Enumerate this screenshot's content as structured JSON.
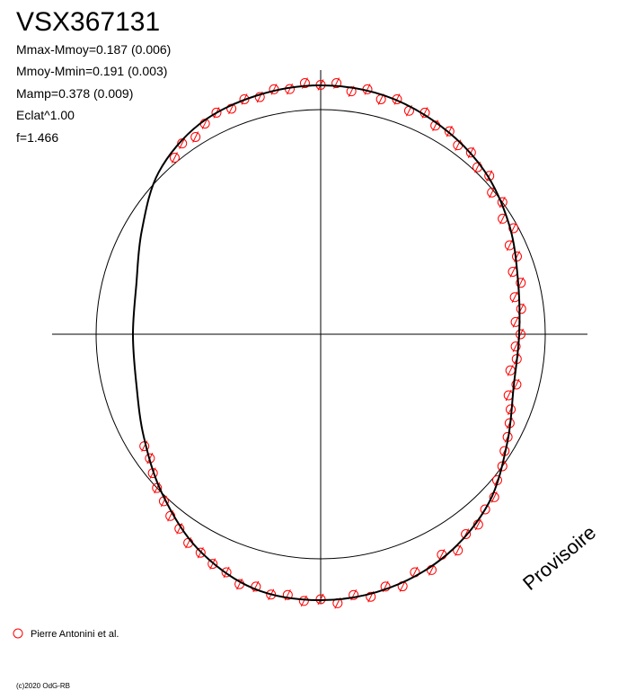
{
  "chart_data": {
    "type": "polar",
    "title": "VSX367131",
    "annotations": [
      "Mmax-Mmoy=0.187 (0.006)",
      "Mmoy-Mmin=0.191 (0.003)",
      "Mamp=0.378 (0.009)",
      "Eclat^1.00",
      "f=1.466"
    ],
    "watermark": "Provisoire",
    "credit": "(c)2020 OdG-RB",
    "reference_radius": 1,
    "series": [
      {
        "name": "Pierre Antonini et al.",
        "color": "#ff0000",
        "phase": [
          0.0,
          0.01,
          0.02,
          0.03,
          0.04,
          0.05,
          0.06,
          0.07,
          0.08,
          0.09,
          0.1,
          0.11,
          0.12,
          0.13,
          0.14,
          0.15,
          0.16,
          0.17,
          0.18,
          0.19,
          0.2,
          0.21,
          0.22,
          0.23,
          0.24,
          0.25,
          0.26,
          0.27,
          0.28,
          0.29,
          0.3,
          0.31,
          0.32,
          0.33,
          0.34,
          0.35,
          0.36,
          0.37,
          0.38,
          0.39,
          0.4,
          0.41,
          0.42,
          0.43,
          0.44,
          0.45,
          0.46,
          0.47,
          0.48,
          0.49,
          0.5,
          0.51,
          0.52,
          0.53,
          0.54,
          0.55,
          0.56,
          0.57,
          0.58,
          0.59,
          0.6,
          0.61,
          0.62,
          0.63,
          0.64,
          0.65,
          0.66,
          0.89,
          0.9,
          0.91,
          0.92,
          0.93,
          0.94,
          0.95,
          0.96,
          0.97,
          0.98,
          0.99
        ],
        "values": [
          1.11,
          1.12,
          1.09,
          1.11,
          1.08,
          1.1,
          1.07,
          1.09,
          1.06,
          1.07,
          1.04,
          1.05,
          1.02,
          1.03,
          0.99,
          1.0,
          0.96,
          0.98,
          0.93,
          0.94,
          0.9,
          0.92,
          0.88,
          0.9,
          0.87,
          0.89,
          0.87,
          0.88,
          0.86,
          0.9,
          0.88,
          0.91,
          0.93,
          0.95,
          0.97,
          1.0,
          1.02,
          1.06,
          1.07,
          1.1,
          1.1,
          1.14,
          1.12,
          1.16,
          1.14,
          1.18,
          1.16,
          1.19,
          1.17,
          1.2,
          1.18,
          1.19,
          1.17,
          1.18,
          1.16,
          1.17,
          1.14,
          1.13,
          1.11,
          1.1,
          1.07,
          1.05,
          1.02,
          1.0,
          0.97,
          0.94,
          0.93,
          1.02,
          1.05,
          1.04,
          1.07,
          1.09,
          1.08,
          1.1,
          1.09,
          1.11,
          1.1,
          1.12
        ]
      }
    ],
    "fit": {
      "color": "#000000",
      "phase": [
        0,
        0.0417,
        0.0833,
        0.125,
        0.1667,
        0.2083,
        0.25,
        0.2917,
        0.3333,
        0.375,
        0.4167,
        0.4583,
        0.5,
        0.5417,
        0.5833,
        0.625,
        0.6667,
        0.7083,
        0.75,
        0.7917,
        0.8333,
        0.875,
        0.9167,
        0.9583
      ],
      "values": [
        1.108,
        1.1,
        1.07,
        1.03,
        0.97,
        0.91,
        0.884,
        0.89,
        0.96,
        1.06,
        1.13,
        1.17,
        1.184,
        1.17,
        1.1,
        1.0,
        0.91,
        0.85,
        0.836,
        0.85,
        0.92,
        1.02,
        1.08,
        1.1
      ]
    }
  }
}
